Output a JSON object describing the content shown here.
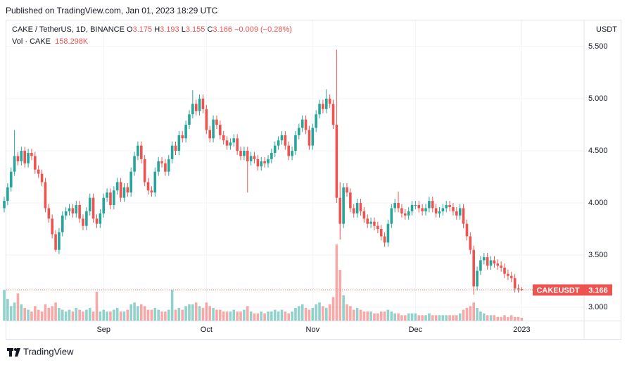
{
  "page": {
    "published": "Published on TradingView.com, Jan 01, 2023 18:29 UTC",
    "brand": "TradingView"
  },
  "chart_data": {
    "type": "candlestick",
    "symbol": "CAKE / TetherUS, 1D, BINANCE",
    "ohlc_header": [
      {
        "key": "O",
        "value": "3.175"
      },
      {
        "key": "H",
        "value": "3.193"
      },
      {
        "key": "L",
        "value": "3.155"
      },
      {
        "key": "C",
        "value": "3.166"
      }
    ],
    "change": "−0.009 (−0.28%)",
    "volume_title": "Vol · CAKE",
    "volume_label": "158.298K",
    "currency": "USDT",
    "last_label": {
      "symbol": "CAKEUSDT",
      "price": "3.166"
    },
    "up_color": "#26a69a",
    "down_color": "#ef5350",
    "categories": [
      null,
      null,
      null,
      null,
      null,
      null,
      null,
      null,
      null,
      null,
      null,
      null,
      null,
      null,
      null,
      null,
      null,
      null,
      null,
      null,
      null,
      null,
      null,
      null,
      null,
      null,
      null,
      null,
      null,
      "Sep",
      null,
      null,
      null,
      null,
      null,
      null,
      null,
      null,
      null,
      null,
      null,
      null,
      null,
      null,
      null,
      null,
      null,
      null,
      null,
      null,
      null,
      null,
      null,
      null,
      null,
      null,
      null,
      null,
      null,
      "Oct",
      null,
      null,
      null,
      null,
      null,
      null,
      null,
      null,
      null,
      null,
      null,
      null,
      null,
      null,
      null,
      null,
      null,
      null,
      null,
      null,
      null,
      null,
      null,
      null,
      null,
      null,
      null,
      null,
      null,
      null,
      "Nov",
      null,
      null,
      null,
      null,
      null,
      null,
      null,
      null,
      null,
      null,
      null,
      null,
      null,
      null,
      null,
      null,
      null,
      null,
      null,
      null,
      null,
      null,
      null,
      null,
      null,
      null,
      null,
      null,
      null,
      "Dec",
      null,
      null,
      null,
      null,
      null,
      null,
      null,
      null,
      null,
      null,
      null,
      null,
      null,
      null,
      null,
      null,
      null,
      null,
      null,
      null,
      null,
      null,
      null,
      null,
      null,
      null,
      null,
      null,
      null,
      null,
      "2023"
    ],
    "open": [
      3.95,
      4.02,
      4.15,
      4.3,
      4.45,
      4.4,
      4.5,
      4.38,
      4.48,
      4.45,
      4.32,
      4.28,
      4.2,
      3.95,
      3.85,
      3.7,
      3.55,
      3.72,
      3.88,
      3.92,
      3.95,
      3.9,
      3.98,
      3.85,
      3.78,
      3.92,
      4.05,
      3.85,
      3.8,
      3.9,
      4.05,
      4.1,
      3.98,
      4.12,
      4.2,
      4.05,
      4.15,
      4.1,
      4.3,
      4.45,
      4.55,
      4.42,
      4.2,
      4.12,
      4.1,
      4.3,
      4.4,
      4.38,
      4.3,
      4.42,
      4.55,
      4.5,
      4.65,
      4.62,
      4.75,
      4.85,
      4.95,
      4.88,
      5.0,
      4.9,
      4.7,
      4.62,
      4.8,
      4.75,
      4.65,
      4.6,
      4.55,
      4.58,
      4.62,
      4.5,
      4.45,
      4.5,
      4.4,
      4.45,
      4.42,
      4.35,
      4.4,
      4.38,
      4.42,
      4.48,
      4.55,
      4.6,
      4.65,
      4.55,
      4.45,
      4.5,
      4.65,
      4.72,
      4.8,
      4.7,
      4.55,
      4.72,
      4.85,
      4.95,
      4.9,
      5.0,
      4.95,
      4.75,
      4.05,
      3.8,
      4.15,
      4.1,
      3.95,
      3.9,
      4.0,
      3.92,
      3.85,
      3.8,
      3.82,
      3.78,
      3.75,
      3.68,
      3.62,
      3.8,
      3.95,
      4.0,
      3.95,
      3.9,
      3.88,
      3.92,
      3.98,
      3.98,
      3.95,
      3.92,
      3.95,
      4.02,
      3.95,
      3.9,
      3.92,
      3.95,
      3.98,
      3.96,
      3.92,
      3.88,
      3.95,
      3.8,
      3.68,
      3.55,
      3.2,
      3.35,
      3.45,
      3.48,
      3.4,
      3.45,
      3.42,
      3.4,
      3.38,
      3.32,
      3.3,
      3.28,
      3.18,
      3.175
    ],
    "high": [
      4.06,
      4.19,
      4.34,
      4.7,
      4.49,
      4.54,
      4.54,
      4.52,
      4.52,
      4.49,
      4.36,
      4.32,
      4.24,
      3.99,
      3.89,
      3.74,
      3.76,
      3.92,
      3.96,
      3.99,
      3.99,
      4.02,
      4.02,
      3.89,
      3.96,
      4.09,
      4.09,
      3.89,
      3.94,
      4.09,
      4.14,
      4.14,
      4.16,
      4.24,
      4.24,
      4.19,
      4.19,
      4.34,
      4.49,
      4.59,
      4.59,
      4.46,
      4.24,
      4.16,
      4.34,
      4.44,
      4.44,
      4.42,
      4.46,
      4.59,
      4.59,
      4.69,
      4.69,
      4.79,
      4.89,
      5.08,
      4.99,
      5.04,
      5.04,
      4.94,
      4.74,
      4.84,
      4.84,
      4.79,
      4.69,
      4.64,
      4.62,
      4.66,
      4.66,
      4.54,
      4.54,
      4.54,
      4.49,
      4.49,
      4.46,
      4.44,
      4.44,
      4.46,
      4.52,
      4.59,
      4.64,
      4.69,
      4.69,
      4.59,
      4.54,
      4.69,
      4.76,
      4.84,
      4.84,
      4.74,
      4.76,
      4.89,
      4.99,
      4.99,
      5.09,
      5.04,
      4.99,
      5.47,
      4.2,
      4.19,
      4.19,
      4.14,
      3.99,
      4.04,
      4.04,
      3.96,
      3.89,
      3.86,
      3.86,
      3.82,
      3.79,
      3.72,
      3.84,
      3.99,
      4.04,
      4.11,
      3.99,
      3.94,
      3.96,
      4.02,
      4.02,
      4.02,
      3.99,
      3.99,
      4.06,
      4.06,
      3.99,
      3.96,
      3.99,
      4.02,
      4.02,
      4.0,
      3.96,
      3.99,
      3.99,
      3.84,
      3.72,
      3.59,
      3.39,
      3.49,
      3.52,
      3.52,
      3.49,
      3.49,
      3.46,
      3.44,
      3.42,
      3.36,
      3.34,
      3.32,
      3.22,
      3.193
    ],
    "low": [
      3.91,
      3.98,
      4.11,
      4.26,
      4.36,
      4.36,
      4.34,
      4.34,
      4.41,
      4.28,
      4.24,
      4.16,
      3.91,
      3.81,
      3.66,
      3.53,
      3.51,
      3.68,
      3.84,
      3.88,
      3.86,
      3.86,
      3.81,
      3.74,
      3.74,
      3.88,
      3.81,
      3.76,
      3.76,
      3.86,
      4.01,
      3.94,
      3.94,
      4.08,
      4.01,
      4.01,
      4.06,
      4.06,
      4.26,
      4.41,
      4.38,
      4.16,
      4.08,
      4.06,
      4.06,
      4.26,
      4.34,
      4.26,
      4.26,
      4.38,
      4.46,
      4.46,
      4.58,
      4.58,
      4.71,
      4.81,
      4.84,
      4.84,
      4.86,
      4.66,
      4.58,
      4.58,
      4.71,
      4.61,
      4.56,
      4.51,
      4.51,
      4.54,
      4.46,
      4.41,
      4.41,
      4.1,
      4.36,
      4.38,
      4.31,
      4.31,
      4.34,
      4.34,
      4.38,
      4.44,
      4.51,
      4.56,
      4.51,
      4.41,
      4.41,
      4.46,
      4.61,
      4.68,
      4.66,
      4.51,
      4.51,
      4.68,
      4.81,
      4.86,
      4.86,
      4.91,
      4.71,
      4.0,
      3.65,
      3.76,
      4.06,
      3.91,
      3.86,
      3.86,
      3.88,
      3.81,
      3.76,
      3.76,
      3.74,
      3.71,
      3.64,
      3.58,
      3.58,
      3.76,
      3.91,
      3.91,
      3.86,
      3.84,
      3.84,
      3.88,
      3.94,
      3.91,
      3.88,
      3.88,
      3.91,
      3.91,
      3.86,
      3.86,
      3.88,
      3.91,
      3.92,
      3.88,
      3.84,
      3.84,
      3.76,
      3.64,
      3.51,
      3.12,
      3.16,
      3.31,
      3.41,
      3.36,
      3.36,
      3.38,
      3.36,
      3.34,
      3.28,
      3.26,
      3.24,
      3.14,
      3.14,
      3.155
    ],
    "close": [
      4.02,
      4.15,
      4.3,
      4.45,
      4.4,
      4.5,
      4.38,
      4.48,
      4.45,
      4.32,
      4.28,
      4.2,
      3.95,
      3.85,
      3.7,
      3.55,
      3.72,
      3.88,
      3.92,
      3.95,
      3.9,
      3.98,
      3.85,
      3.78,
      3.92,
      4.05,
      3.85,
      3.8,
      3.9,
      4.05,
      4.1,
      3.98,
      4.12,
      4.2,
      4.05,
      4.15,
      4.1,
      4.3,
      4.45,
      4.55,
      4.42,
      4.2,
      4.12,
      4.1,
      4.3,
      4.4,
      4.38,
      4.3,
      4.42,
      4.55,
      4.5,
      4.65,
      4.62,
      4.75,
      4.85,
      4.95,
      4.88,
      5.0,
      4.9,
      4.7,
      4.62,
      4.8,
      4.75,
      4.65,
      4.6,
      4.55,
      4.58,
      4.62,
      4.5,
      4.45,
      4.5,
      4.4,
      4.45,
      4.42,
      4.35,
      4.4,
      4.38,
      4.42,
      4.48,
      4.55,
      4.6,
      4.65,
      4.55,
      4.45,
      4.5,
      4.65,
      4.72,
      4.8,
      4.7,
      4.55,
      4.72,
      4.85,
      4.95,
      4.9,
      5.0,
      4.95,
      4.75,
      4.05,
      3.8,
      4.15,
      4.1,
      3.95,
      3.9,
      4.0,
      3.92,
      3.85,
      3.8,
      3.82,
      3.78,
      3.75,
      3.68,
      3.62,
      3.8,
      3.95,
      4.0,
      3.95,
      3.9,
      3.88,
      3.92,
      3.98,
      3.98,
      3.95,
      3.92,
      3.95,
      4.02,
      3.95,
      3.9,
      3.92,
      3.95,
      3.98,
      3.96,
      3.92,
      3.88,
      3.95,
      3.8,
      3.68,
      3.55,
      3.2,
      3.35,
      3.45,
      3.48,
      3.4,
      3.45,
      3.42,
      3.4,
      3.38,
      3.32,
      3.3,
      3.28,
      3.18,
      3.175,
      3.166
    ],
    "volume": [
      1700000,
      1200000,
      800000,
      1000000,
      1500000,
      900000,
      700000,
      600000,
      500000,
      800000,
      600000,
      500000,
      900000,
      700000,
      800000,
      1000000,
      700000,
      600000,
      500000,
      600000,
      500000,
      700000,
      600000,
      500000,
      600000,
      700000,
      500000,
      1600000,
      500000,
      600000,
      500000,
      500000,
      600000,
      700000,
      500000,
      500000,
      600000,
      900000,
      1000000,
      800000,
      900000,
      800000,
      600000,
      600000,
      700000,
      600000,
      500000,
      500000,
      600000,
      1700000,
      600000,
      700000,
      600000,
      800000,
      900000,
      900000,
      1000000,
      800000,
      700000,
      1000000,
      800000,
      700000,
      600000,
      600000,
      500000,
      500000,
      500000,
      600000,
      500000,
      500000,
      600000,
      800000,
      500000,
      400000,
      400000,
      500000,
      400000,
      500000,
      500000,
      600000,
      500000,
      600000,
      500000,
      400000,
      500000,
      700000,
      800000,
      900000,
      700000,
      600000,
      700000,
      900000,
      1000000,
      800000,
      700000,
      900000,
      1300000,
      4200000,
      2800000,
      1400000,
      900000,
      800000,
      600000,
      700000,
      600000,
      500000,
      500000,
      500000,
      400000,
      400000,
      500000,
      500000,
      600000,
      500000,
      400000,
      400000,
      300000,
      300000,
      400000,
      400000,
      400000,
      300000,
      300000,
      300000,
      400000,
      300000,
      300000,
      300000,
      300000,
      300000,
      300000,
      300000,
      300000,
      400000,
      600000,
      700000,
      800000,
      1000000,
      700000,
      500000,
      400000,
      300000,
      300000,
      300000,
      200000,
      200000,
      300000,
      200000,
      300000,
      200000,
      200000,
      158298
    ],
    "ylim": [
      2.872,
      5.757
    ],
    "yticks": [
      {
        "value": 3,
        "label": "3.000"
      },
      {
        "value": 3.5,
        "label": "3.500"
      },
      {
        "value": 4,
        "label": "4.000"
      },
      {
        "value": 4.5,
        "label": "4.500"
      },
      {
        "value": 5,
        "label": "5.000"
      },
      {
        "value": 5.5,
        "label": "5.500"
      }
    ],
    "grid": true
  }
}
